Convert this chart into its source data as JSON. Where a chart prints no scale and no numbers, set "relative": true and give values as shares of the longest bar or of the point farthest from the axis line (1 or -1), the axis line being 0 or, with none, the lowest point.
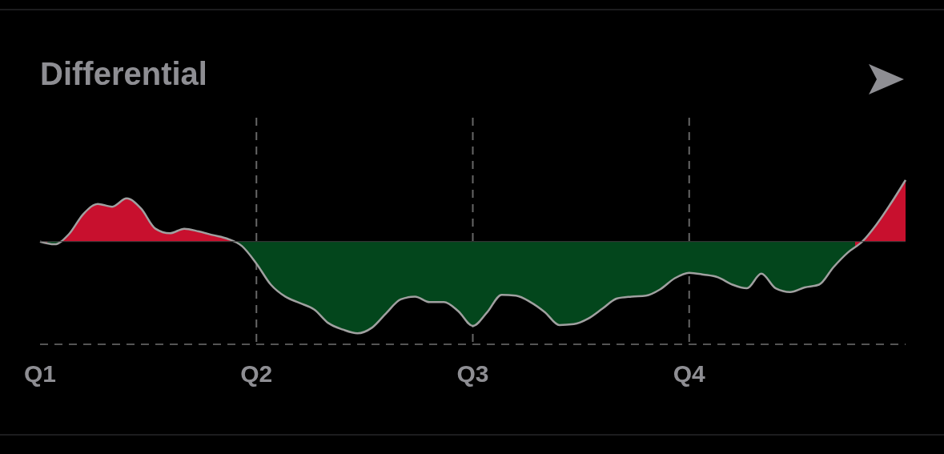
{
  "chart_data": {
    "type": "area",
    "title": "Differential",
    "relative": true,
    "categories": [
      "Q1",
      null,
      null,
      null,
      null,
      null,
      null,
      null,
      null,
      null,
      null,
      null,
      null,
      null,
      null,
      "Q2",
      null,
      null,
      null,
      null,
      null,
      null,
      null,
      null,
      null,
      null,
      null,
      null,
      null,
      null,
      "Q3",
      null,
      null,
      null,
      null,
      null,
      null,
      null,
      null,
      null,
      null,
      null,
      null,
      null,
      null,
      "Q4",
      null,
      null,
      null,
      null,
      null,
      null,
      null,
      null,
      null,
      null,
      null,
      null,
      null,
      null,
      null
    ],
    "series": [
      {
        "color": "#a0a0a0",
        "colors": [
          "#c8102e",
          "#03461c",
          "#c8102e",
          "#c8102e",
          "#c8102e",
          "#c8102e",
          "#c8102e",
          "#c8102e",
          "#c8102e",
          "#c8102e",
          "#c8102e",
          "#c8102e",
          "#c8102e",
          "#c8102e",
          "#03461c",
          "#03461c",
          "#03461c",
          "#03461c",
          "#03461c",
          "#03461c",
          "#03461c",
          "#03461c",
          "#03461c",
          "#03461c",
          "#03461c",
          "#03461c",
          "#03461c",
          "#03461c",
          "#03461c",
          "#03461c",
          "#03461c",
          "#03461c",
          "#03461c",
          "#03461c",
          "#03461c",
          "#03461c",
          "#03461c",
          "#03461c",
          "#03461c",
          "#03461c",
          "#03461c",
          "#03461c",
          "#03461c",
          "#03461c",
          "#03461c",
          "#03461c",
          "#03461c",
          "#03461c",
          "#03461c",
          "#03461c",
          "#03461c",
          "#03461c",
          "#03461c",
          "#03461c",
          "#03461c",
          "#03461c",
          "#03461c",
          "#c8102e",
          "#c8102e",
          "#c8102e",
          "#c8102e"
        ],
        "values": [
          0,
          -0.03,
          0.08,
          0.3,
          0.41,
          0.38,
          0.47,
          0.36,
          0.14,
          0.09,
          0.14,
          0.11,
          0.07,
          0.03,
          -0.05,
          -0.24,
          -0.47,
          -0.6,
          -0.67,
          -0.74,
          -0.89,
          -0.96,
          -1.0,
          -0.94,
          -0.78,
          -0.63,
          -0.6,
          -0.66,
          -0.66,
          -0.76,
          -0.92,
          -0.77,
          -0.58,
          -0.59,
          -0.66,
          -0.77,
          -0.91,
          -0.9,
          -0.84,
          -0.73,
          -0.62,
          -0.6,
          -0.59,
          -0.52,
          -0.4,
          -0.34,
          -0.36,
          -0.39,
          -0.47,
          -0.51,
          -0.35,
          -0.51,
          -0.55,
          -0.5,
          -0.47,
          -0.28,
          -0.12,
          0.0,
          0.19,
          0.42,
          0.67
        ]
      }
    ],
    "grid": "x"
  }
}
